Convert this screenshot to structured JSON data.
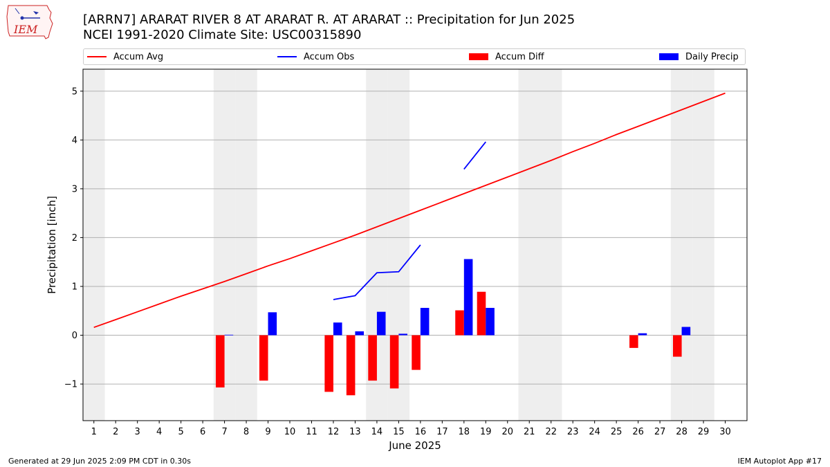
{
  "title": "[ARRN7] ARARAT RIVER 8 AT ARARAT R. AT ARARAT :: Precipitation for Jun 2025",
  "subtitle": "NCEI 1991-2020 Climate Site: USC00315890",
  "footer_left": "Generated at 29 Jun 2025 2:09 PM CDT in 0.30s",
  "footer_right": "IEM Autoplot App #17",
  "logo_text": "IEM",
  "legend": [
    {
      "label": "Accum Avg",
      "kind": "line",
      "color": "#ff0000"
    },
    {
      "label": "Accum Obs",
      "kind": "line",
      "color": "#0000ff"
    },
    {
      "label": "Accum Diff",
      "kind": "box",
      "color": "#ff0000"
    },
    {
      "label": "Daily Precip",
      "kind": "box",
      "color": "#0000ff"
    }
  ],
  "chart_data": {
    "type": "bar",
    "xlabel": "June 2025",
    "ylabel": "Precipitation [inch]",
    "ylim": [
      -1.75,
      5.45
    ],
    "yticks": [
      -1,
      0,
      1,
      2,
      3,
      4,
      5
    ],
    "xlim": [
      0.5,
      31
    ],
    "days": [
      1,
      2,
      3,
      4,
      5,
      6,
      7,
      8,
      9,
      10,
      11,
      12,
      13,
      14,
      15,
      16,
      17,
      18,
      19,
      20,
      21,
      22,
      23,
      24,
      25,
      26,
      27,
      28,
      29,
      30
    ],
    "weekend_days": [
      1,
      7,
      8,
      14,
      15,
      21,
      22,
      28,
      29
    ],
    "grid": "horizontal",
    "legend_position": "top",
    "series": [
      {
        "name": "Accum Avg",
        "kind": "line",
        "color": "#ff0000",
        "x": [
          1,
          2,
          3,
          4,
          5,
          6,
          7,
          8,
          9,
          10,
          11,
          12,
          13,
          14,
          15,
          16,
          17,
          18,
          19,
          20,
          21,
          22,
          23,
          24,
          25,
          26,
          27,
          28,
          29,
          30
        ],
        "values": [
          0.16,
          0.32,
          0.48,
          0.64,
          0.8,
          0.95,
          1.1,
          1.26,
          1.42,
          1.57,
          1.73,
          1.89,
          2.05,
          2.22,
          2.39,
          2.56,
          2.73,
          2.9,
          3.07,
          3.24,
          3.41,
          3.58,
          3.76,
          3.93,
          4.11,
          4.28,
          4.45,
          4.62,
          4.79,
          4.96
        ]
      },
      {
        "name": "Accum Obs",
        "kind": "line",
        "color": "#0000ff",
        "segments": [
          {
            "x": [
              12,
              13,
              14,
              15,
              16
            ],
            "values": [
              0.73,
              0.81,
              1.28,
              1.3,
              1.85
            ]
          },
          {
            "x": [
              18,
              19
            ],
            "values": [
              3.4,
              3.96
            ]
          }
        ]
      },
      {
        "name": "Accum Diff",
        "kind": "bar",
        "color": "#ff0000",
        "offset": -0.2,
        "x": [
          7,
          9,
          12,
          13,
          14,
          15,
          16,
          18,
          19,
          26,
          28
        ],
        "values": [
          -1.07,
          -0.93,
          -1.16,
          -1.23,
          -0.93,
          -1.09,
          -0.71,
          0.51,
          0.89,
          -0.26,
          -0.44
        ]
      },
      {
        "name": "Daily Precip",
        "kind": "bar",
        "color": "#0000ff",
        "offset": 0.2,
        "x": [
          7,
          9,
          12,
          13,
          14,
          15,
          16,
          18,
          19,
          26,
          28
        ],
        "values": [
          0.01,
          0.47,
          0.26,
          0.08,
          0.48,
          0.03,
          0.56,
          1.56,
          0.56,
          0.04,
          0.17
        ]
      }
    ]
  }
}
